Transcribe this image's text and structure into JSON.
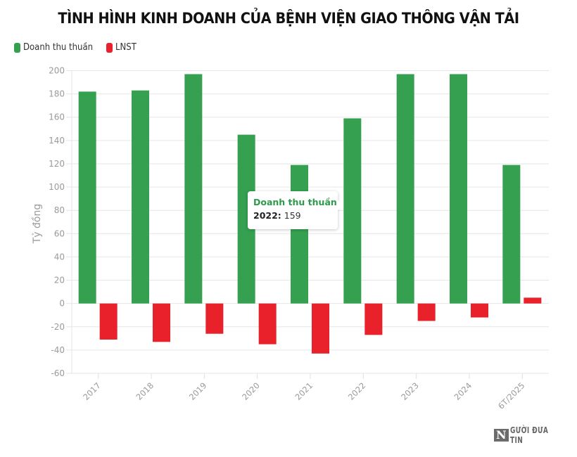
{
  "title": "TÌNH HÌNH KINH DOANH CỦA BỆNH VIỆN GIAO THÔNG VẬN TẢI",
  "legend": [
    {
      "label": "Doanh thu thuần",
      "color": "#34a050"
    },
    {
      "label": "LNST",
      "color": "#e8212a"
    }
  ],
  "tooltip": {
    "series": "Doanh thu thuần",
    "category": "2022:",
    "value": "159"
  },
  "watermark": {
    "mark": "N",
    "text": "GƯỜI ĐƯA TIN"
  },
  "chart_data": {
    "type": "bar",
    "title": "TÌNH HÌNH KINH DOANH CỦA BỆNH VIỆN GIAO THÔNG VẬN TẢI",
    "xlabel": "",
    "ylabel": "Tỷ đồng",
    "categories": [
      "2017",
      "2018",
      "2019",
      "2020",
      "2021",
      "2022",
      "2023",
      "2024",
      "6T/2025"
    ],
    "series": [
      {
        "name": "Doanh thu thuần",
        "color": "#34a050",
        "values": [
          182,
          183,
          197,
          145,
          119,
          159,
          197,
          197,
          119
        ]
      },
      {
        "name": "LNST",
        "color": "#e8212a",
        "values": [
          -31,
          -33,
          -26,
          -35,
          -43,
          -27,
          -15,
          -12,
          5
        ]
      }
    ],
    "ylim": [
      -60,
      200
    ],
    "yticks": [
      200,
      180,
      160,
      140,
      120,
      100,
      80,
      60,
      40,
      20,
      0,
      -20,
      -40,
      -60
    ],
    "grid": true,
    "legend_position": "top-left"
  }
}
